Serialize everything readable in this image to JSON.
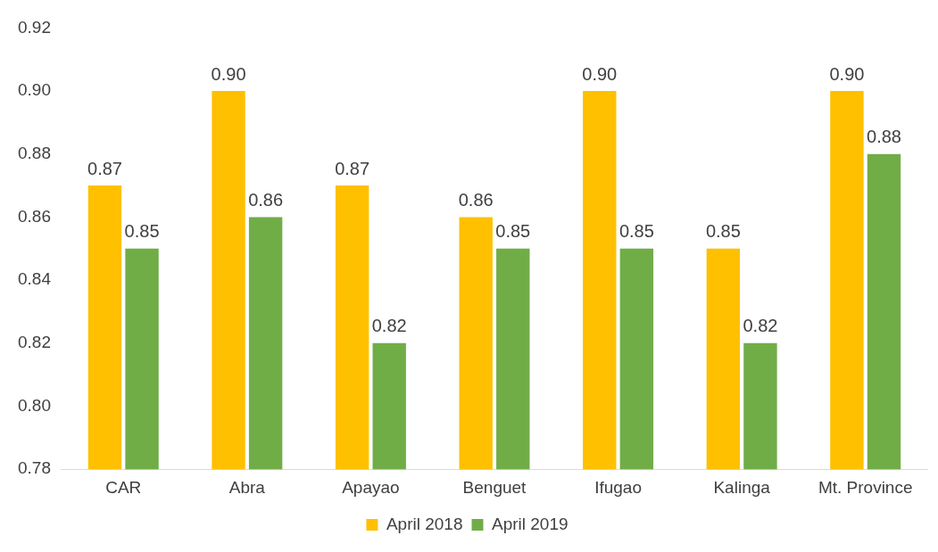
{
  "chart_data": {
    "type": "bar",
    "categories": [
      "CAR",
      "Abra",
      "Apayao",
      "Benguet",
      "Ifugao",
      "Kalinga",
      "Mt. Province"
    ],
    "series": [
      {
        "name": "April 2018",
        "color": "#ffc000",
        "values": [
          0.87,
          0.9,
          0.87,
          0.86,
          0.9,
          0.85,
          0.9
        ],
        "value_labels": [
          "0.87",
          "0.90",
          "0.87",
          "0.86",
          "0.90",
          "0.85",
          "0.90"
        ]
      },
      {
        "name": "April 2019",
        "color": "#70ad47",
        "values": [
          0.85,
          0.86,
          0.82,
          0.85,
          0.85,
          0.82,
          0.88
        ],
        "value_labels": [
          "0.85",
          "0.86",
          "0.82",
          "0.85",
          "0.85",
          "0.82",
          "0.88"
        ]
      }
    ],
    "ylim": [
      0.78,
      0.92
    ],
    "yticks": [
      {
        "value": 0.78,
        "label": "0.78"
      },
      {
        "value": 0.8,
        "label": "0.80"
      },
      {
        "value": 0.82,
        "label": "0.82"
      },
      {
        "value": 0.84,
        "label": "0.84"
      },
      {
        "value": 0.86,
        "label": "0.86"
      },
      {
        "value": 0.88,
        "label": "0.88"
      },
      {
        "value": 0.9,
        "label": "0.90"
      },
      {
        "value": 0.92,
        "label": "0.92"
      }
    ],
    "grid": false,
    "legend": "bottom"
  }
}
